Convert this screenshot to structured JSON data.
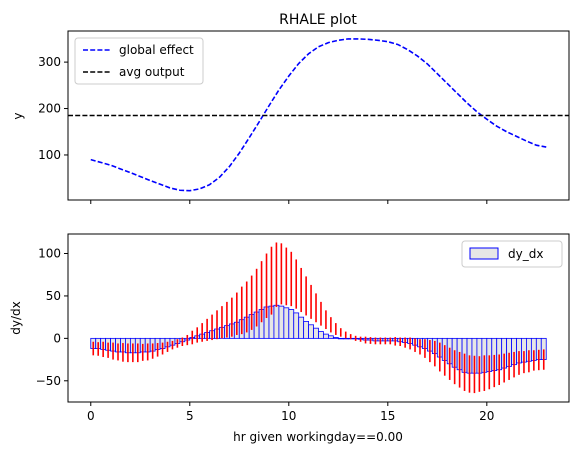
{
  "chart_data": [
    {
      "type": "line",
      "title": "RHALE plot",
      "xlabel": "",
      "ylabel": "y",
      "xlim": [
        -1.15,
        24.15
      ],
      "ylim": [
        3,
        367
      ],
      "xticks": [
        0,
        5,
        10,
        15,
        20
      ],
      "yticks": [
        100,
        200,
        300
      ],
      "ytick_labels": [
        "100",
        "200",
        "300"
      ],
      "x_ticklabels_visible": false,
      "legend": {
        "position": "top-left",
        "entries": [
          "global effect",
          "avg output"
        ]
      },
      "series": [
        {
          "name": "global effect",
          "style": "dashed",
          "color": "#0000ff",
          "x": [
            0,
            1,
            2,
            3,
            4,
            4.5,
            5,
            5.5,
            6,
            6.5,
            7,
            7.5,
            8,
            8.5,
            9,
            9.5,
            10,
            10.5,
            11,
            11.5,
            12,
            12.5,
            13,
            13.5,
            14,
            14.5,
            15,
            15.5,
            16,
            16.5,
            17,
            17.5,
            18,
            18.5,
            19,
            19.5,
            20,
            20.5,
            21,
            21.5,
            22,
            22.5,
            23
          ],
          "y": [
            90,
            78,
            62,
            45,
            29,
            24,
            23,
            27,
            36,
            52,
            75,
            104,
            137,
            171,
            206,
            240,
            270,
            297,
            318,
            333,
            342,
            347,
            350,
            350,
            349,
            347,
            344,
            338,
            327,
            313,
            296,
            275,
            254,
            233,
            212,
            193,
            177,
            162,
            150,
            140,
            130,
            121,
            117
          ]
        },
        {
          "name": "avg output",
          "style": "dashed",
          "color": "#000000",
          "y": 185
        }
      ]
    },
    {
      "type": "bar",
      "title": "",
      "xlabel": "hr given workingday==0.00",
      "ylabel": "dy/dx",
      "xlim": [
        -1.15,
        24.15
      ],
      "ylim": [
        -75,
        123
      ],
      "xticks": [
        0,
        5,
        10,
        15,
        20
      ],
      "xtick_labels": [
        "0",
        "5",
        "10",
        "15",
        "20"
      ],
      "yticks": [
        -50,
        0,
        50,
        100
      ],
      "ytick_labels": [
        "−50",
        "0",
        "50",
        "100"
      ],
      "legend": {
        "position": "top-right",
        "entries": [
          "dy_dx"
        ]
      },
      "bar_color": "#0000ff",
      "errorbar_color": "#ff0000",
      "bin_width": 0.25,
      "x": [
        0,
        0.25,
        0.5,
        0.75,
        1,
        1.25,
        1.5,
        1.75,
        2,
        2.25,
        2.5,
        2.75,
        3,
        3.25,
        3.5,
        3.75,
        4,
        4.25,
        4.5,
        4.75,
        5,
        5.25,
        5.5,
        5.75,
        6,
        6.25,
        6.5,
        6.75,
        7,
        7.25,
        7.5,
        7.75,
        8,
        8.25,
        8.5,
        8.75,
        9,
        9.25,
        9.5,
        9.75,
        10,
        10.25,
        10.5,
        10.75,
        11,
        11.25,
        11.5,
        11.75,
        12,
        12.25,
        12.5,
        12.75,
        13,
        13.25,
        13.5,
        13.75,
        14,
        14.25,
        14.5,
        14.75,
        15,
        15.25,
        15.5,
        15.75,
        16,
        16.25,
        16.5,
        16.75,
        17,
        17.25,
        17.5,
        17.75,
        18,
        18.25,
        18.5,
        18.75,
        19,
        19.25,
        19.5,
        19.75,
        20,
        20.25,
        20.5,
        20.75,
        21,
        21.25,
        21.5,
        21.75,
        22,
        22.25,
        22.5,
        22.75
      ],
      "values": [
        -12,
        -12.5,
        -13,
        -14,
        -15,
        -16,
        -16.5,
        -17,
        -17,
        -17,
        -16.5,
        -16,
        -15,
        -13.5,
        -12,
        -10,
        -8,
        -6,
        -4,
        -2,
        1,
        4,
        7,
        10,
        13,
        16,
        19,
        22,
        25,
        29,
        33,
        37,
        42,
        48,
        55,
        62,
        68,
        75,
        76,
        73,
        70,
        64,
        57,
        50,
        43,
        36,
        29,
        22,
        16,
        11,
        7,
        4,
        2,
        0,
        -1,
        -2,
        -2.5,
        -3,
        -3,
        -3,
        -3,
        -3.5,
        -4,
        -5,
        -6,
        -8,
        -10,
        -12,
        -15,
        -18,
        -22,
        -26,
        -30,
        -34,
        -37,
        -40,
        -42,
        -42.5,
        -42,
        -41,
        -40,
        -38.5,
        -37,
        -35,
        -33,
        -31,
        -29,
        -28,
        -27,
        -26,
        -25.5,
        -25
      ],
      "bar_heights": [
        -12,
        -12,
        -13,
        -14,
        -15,
        -16,
        -16,
        -17,
        -17,
        -17,
        -16,
        -16,
        -15,
        -13,
        -12,
        -10,
        -8,
        -6,
        -4,
        -2,
        1,
        3,
        5,
        7,
        9,
        11,
        13,
        15,
        17,
        19,
        22,
        25,
        28,
        31,
        34,
        37,
        38,
        39,
        38,
        36,
        34,
        30,
        25,
        20,
        16,
        12,
        8,
        5,
        3,
        1,
        0,
        0,
        0,
        0,
        -1,
        -2,
        -2,
        -3,
        -3,
        -3,
        -3,
        -3,
        -4,
        -5,
        -6,
        -8,
        -10,
        -12,
        -15,
        -18,
        -22,
        -26,
        -30,
        -34,
        -37,
        -40,
        -41,
        -41,
        -41,
        -40,
        -39,
        -38,
        -37,
        -35,
        -33,
        -31,
        -29,
        -28,
        -27,
        -26,
        -25,
        -25
      ],
      "errors": [
        8,
        8,
        9,
        9,
        10,
        10,
        11,
        11,
        11,
        11,
        10,
        10,
        9,
        8,
        7,
        6,
        5,
        5,
        5,
        6,
        8,
        9,
        11,
        13,
        15,
        17,
        19,
        21,
        23,
        25,
        28,
        30,
        32,
        34,
        36,
        38,
        40,
        38,
        36,
        34,
        32,
        29,
        26,
        23,
        20,
        17,
        14,
        11,
        9,
        7,
        5,
        4,
        3,
        3,
        3,
        4,
        4,
        4,
        4,
        4,
        4,
        5,
        5,
        6,
        7,
        8,
        9,
        11,
        13,
        15,
        17,
        18,
        19,
        20,
        21,
        22,
        22,
        22,
        21,
        21,
        20,
        19,
        18,
        17,
        16,
        15,
        14,
        13,
        13,
        12,
        12,
        12
      ]
    }
  ]
}
